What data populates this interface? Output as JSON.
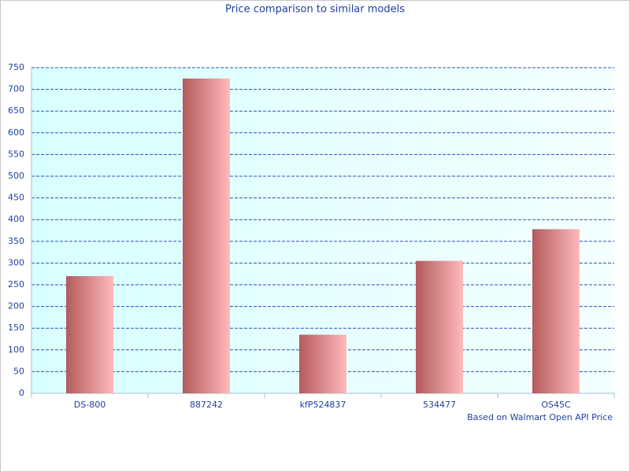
{
  "chart_data": {
    "type": "bar",
    "title": "Price comparison to similar models",
    "categories": [
      "DS-800",
      "887242",
      "kfP524837",
      "534477",
      "OS45C"
    ],
    "values": [
      270,
      725,
      135,
      305,
      378
    ],
    "colors": [
      "#b35a5c",
      "#ffbaba"
    ],
    "ylim": [
      0,
      750
    ],
    "yticks": [
      0,
      50,
      100,
      150,
      200,
      250,
      300,
      350,
      400,
      450,
      500,
      550,
      600,
      650,
      700,
      750
    ],
    "grid": true,
    "annotation": "Based on Walmart Open API Price"
  }
}
